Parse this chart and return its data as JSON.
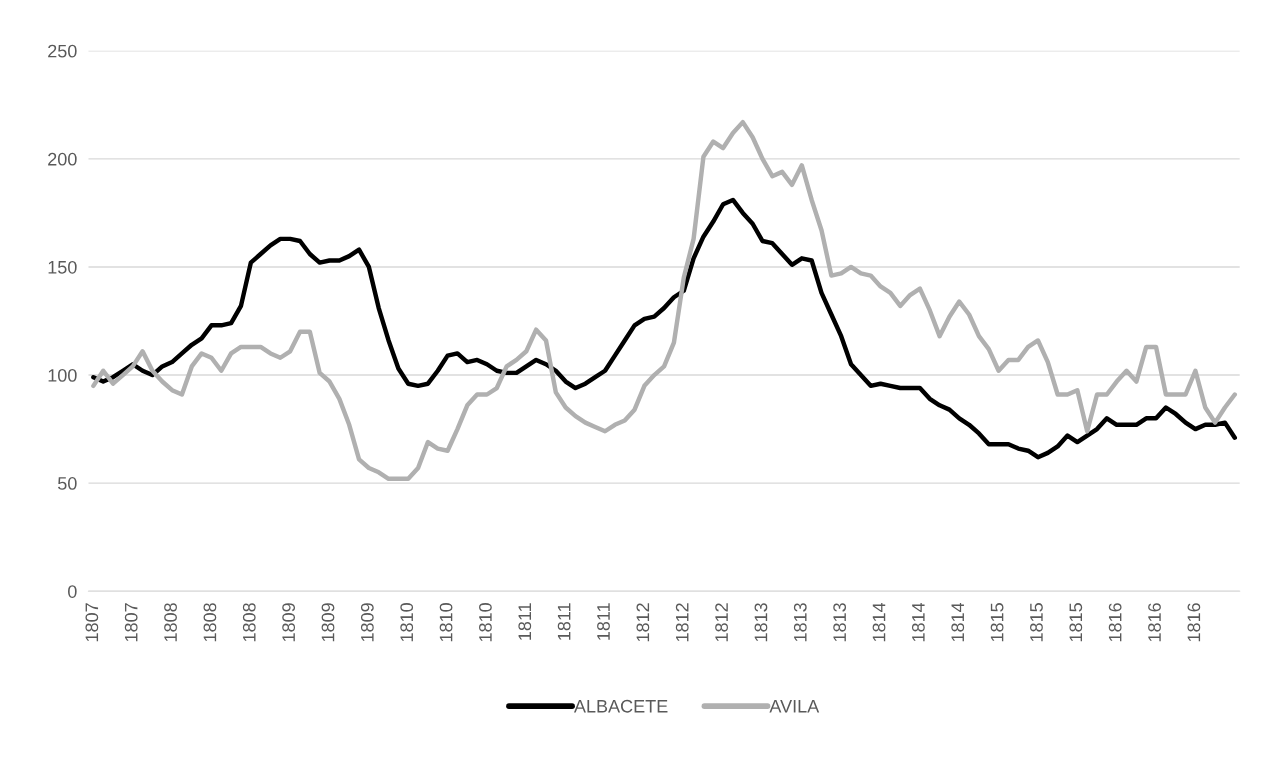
{
  "chart_data": {
    "type": "line",
    "categories": [
      "1807",
      null,
      null,
      null,
      "1807",
      null,
      null,
      null,
      "1808",
      null,
      null,
      null,
      "1808",
      null,
      null,
      null,
      "1808",
      null,
      null,
      null,
      "1809",
      null,
      null,
      null,
      "1809",
      null,
      null,
      null,
      "1809",
      null,
      null,
      null,
      "1810",
      null,
      null,
      null,
      "1810",
      null,
      null,
      null,
      "1810",
      null,
      null,
      null,
      "1811",
      null,
      null,
      null,
      "1811",
      null,
      null,
      null,
      "1811",
      null,
      null,
      null,
      "1812",
      null,
      null,
      null,
      "1812",
      null,
      null,
      null,
      "1812",
      null,
      null,
      null,
      "1813",
      null,
      null,
      null,
      "1813",
      null,
      null,
      null,
      "1813",
      null,
      null,
      null,
      "1814",
      null,
      null,
      null,
      "1814",
      null,
      null,
      null,
      "1814",
      null,
      null,
      null,
      "1815",
      null,
      null,
      null,
      "1815",
      null,
      null,
      null,
      "1815",
      null,
      null,
      null,
      "1816",
      null,
      null,
      null,
      "1816",
      null,
      null,
      null,
      "1816",
      null,
      null,
      null,
      null
    ],
    "series": [
      {
        "name": "ALBACETE",
        "color": "#000000",
        "values": [
          99,
          97,
          99,
          102,
          105,
          102,
          100,
          104,
          106,
          110,
          114,
          117,
          123,
          123,
          124,
          132,
          152,
          156,
          160,
          163,
          163,
          162,
          156,
          152,
          153,
          153,
          155,
          158,
          150,
          131,
          116,
          103,
          96,
          95,
          96,
          102,
          109,
          110,
          106,
          107,
          105,
          102,
          101,
          101,
          104,
          107,
          105,
          102,
          97,
          94,
          96,
          99,
          102,
          109,
          116,
          123,
          126,
          127,
          131,
          136,
          139,
          154,
          164,
          171,
          179,
          181,
          175,
          170,
          162,
          161,
          156,
          151,
          154,
          153,
          138,
          128,
          118,
          105,
          100,
          95,
          96,
          95,
          94,
          94,
          94,
          89,
          86,
          84,
          80,
          77,
          73,
          68,
          68,
          68,
          66,
          65,
          62,
          64,
          67,
          72,
          69,
          72,
          75,
          80,
          77,
          77,
          77,
          80,
          80,
          85,
          82,
          78,
          75,
          77,
          77,
          78,
          71
        ]
      },
      {
        "name": "AVILA",
        "color": "#b0b0b0",
        "values": [
          95,
          102,
          96,
          100,
          104,
          111,
          102,
          97,
          93,
          91,
          104,
          110,
          108,
          102,
          110,
          113,
          113,
          113,
          110,
          108,
          111,
          120,
          120,
          101,
          97,
          89,
          77,
          61,
          57,
          55,
          52,
          52,
          52,
          57,
          69,
          66,
          65,
          75,
          86,
          91,
          91,
          94,
          104,
          107,
          111,
          121,
          116,
          92,
          85,
          81,
          78,
          76,
          74,
          77,
          79,
          84,
          95,
          100,
          104,
          115,
          145,
          163,
          201,
          208,
          205,
          212,
          217,
          210,
          200,
          192,
          194,
          188,
          197,
          181,
          167,
          146,
          147,
          150,
          147,
          146,
          141,
          138,
          132,
          137,
          140,
          130,
          118,
          127,
          134,
          128,
          118,
          112,
          102,
          107,
          107,
          113,
          116,
          106,
          91,
          91,
          93,
          74,
          91,
          91,
          97,
          102,
          97,
          113,
          113,
          91,
          91,
          91,
          102,
          85,
          78,
          85,
          91
        ]
      }
    ],
    "ylim": [
      0,
      250
    ],
    "yticks": [
      0,
      50,
      100,
      150,
      200,
      250
    ],
    "grid": "y",
    "legend": "bottom",
    "line_style": "solid",
    "marker": "none"
  }
}
